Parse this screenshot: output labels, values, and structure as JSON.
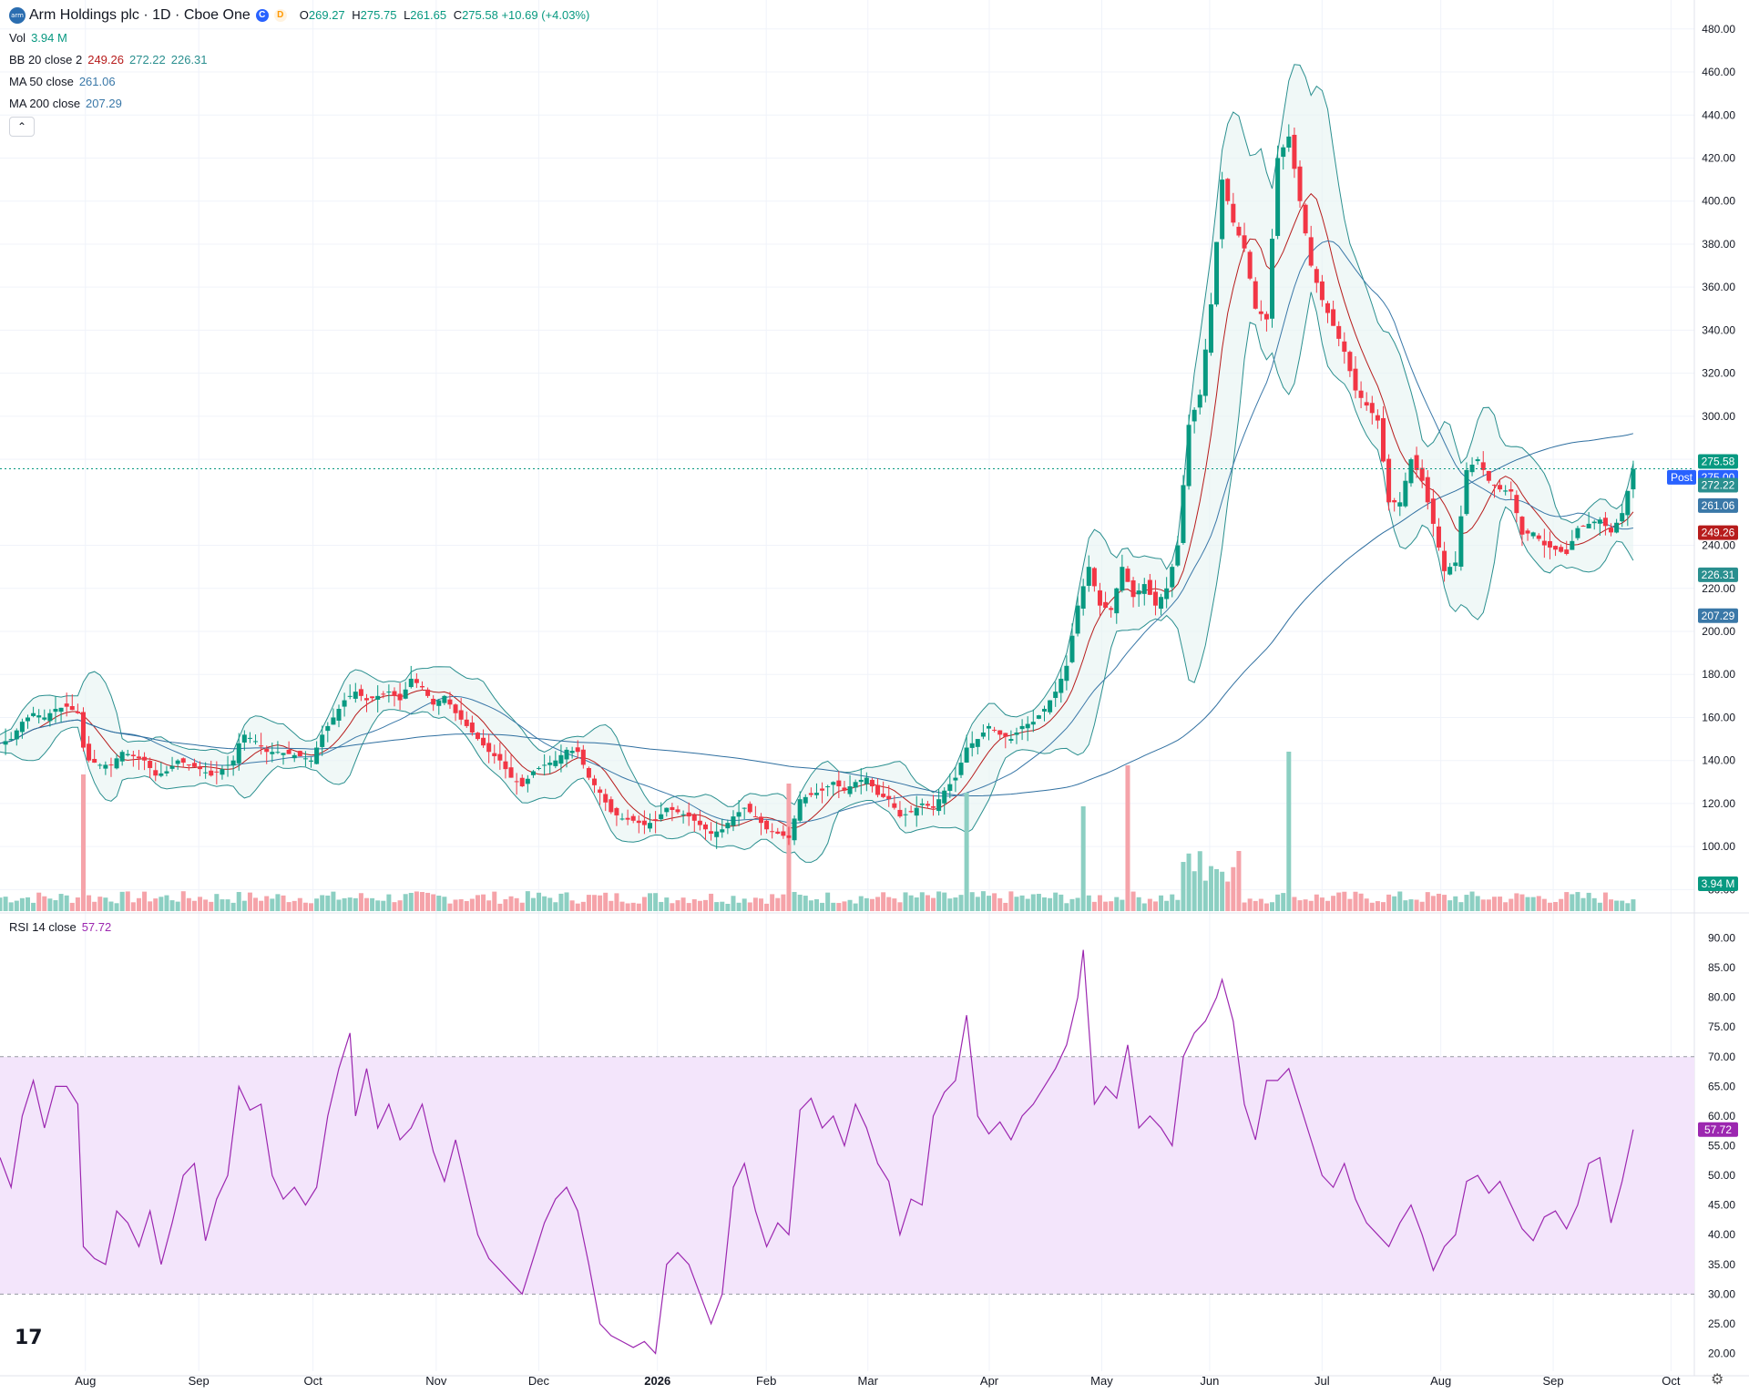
{
  "header": {
    "logo_text": "arm",
    "symbol_title": "Arm Holdings plc · 1D · Cboe One",
    "badge_c": "C",
    "badge_d": "D",
    "ohlc": {
      "o_label": "O",
      "o": "269.27",
      "h_label": "H",
      "h": "275.75",
      "l_label": "L",
      "l": "261.65",
      "c_label": "C",
      "c": "275.58",
      "change": "+10.69 (+4.03%)"
    }
  },
  "indicators": {
    "vol": {
      "label": "Vol",
      "value": "3.94 M"
    },
    "bb": {
      "label": "BB 20 close 2",
      "basis": "249.26",
      "upper": "272.22",
      "lower": "226.31"
    },
    "ma50": {
      "label": "MA 50 close",
      "value": "261.06"
    },
    "ma200": {
      "label": "MA 200 close",
      "value": "207.29"
    },
    "rsi": {
      "label": "RSI 14 close",
      "value": "57.72"
    }
  },
  "colors": {
    "up": "#089981",
    "down": "#f23645",
    "bb_band": "#2a8f8f",
    "bb_basis": "#b71c1c",
    "ma50": "#3a78a8",
    "ma200": "#2f6fa0",
    "rsi_line": "#9c27b0",
    "rsi_fill": "#f3e5fb",
    "last_price": "#089981",
    "post": "#2962ff"
  },
  "chart_data": {
    "type": "candlestick",
    "title": "Arm Holdings plc · 1D · Cboe One",
    "price_axis": {
      "ticks": [
        "480.00",
        "460.00",
        "440.00",
        "420.00",
        "400.00",
        "380.00",
        "360.00",
        "340.00",
        "320.00",
        "300.00",
        "280.00",
        "240.00",
        "220.00",
        "200.00",
        "180.00",
        "160.00",
        "140.00",
        "120.00",
        "100.00",
        "80.00"
      ],
      "ylim": [
        70,
        485
      ]
    },
    "price_labels": [
      {
        "text": "275.58",
        "value": 275.58,
        "color": "#089981"
      },
      {
        "text": "275.00",
        "value": 275.0,
        "color": "#2962ff",
        "tag": "Post"
      },
      {
        "text": "272.22",
        "value": 272.22,
        "color": "#2a8f8f"
      },
      {
        "text": "261.06",
        "value": 261.06,
        "color": "#3a78a8"
      },
      {
        "text": "249.26",
        "value": 249.26,
        "color": "#b71c1c"
      },
      {
        "text": "226.31",
        "value": 226.31,
        "color": "#2a8f8f"
      },
      {
        "text": "207.29",
        "value": 207.29,
        "color": "#3a78a8"
      }
    ],
    "volume_label": "3.94 M",
    "time_axis": [
      "Aug",
      "Sep",
      "Oct",
      "Nov",
      "Dec",
      "2026",
      "Feb",
      "Mar",
      "Apr",
      "May",
      "Jun",
      "Jul",
      "Aug",
      "Sep",
      "Oct"
    ],
    "series": [
      {
        "name": "Close (approx.)",
        "values": [
          [
            0,
            148
          ],
          [
            10,
            150
          ],
          [
            20,
            158
          ],
          [
            30,
            162
          ],
          [
            40,
            160
          ],
          [
            50,
            164
          ],
          [
            60,
            165
          ],
          [
            70,
            162
          ],
          [
            75,
            146
          ],
          [
            80,
            140
          ],
          [
            90,
            138
          ],
          [
            100,
            138
          ],
          [
            110,
            144
          ],
          [
            120,
            142
          ],
          [
            130,
            140
          ],
          [
            140,
            133
          ],
          [
            150,
            135
          ],
          [
            160,
            140
          ],
          [
            170,
            138
          ],
          [
            180,
            136
          ],
          [
            190,
            133
          ],
          [
            200,
            136
          ],
          [
            210,
            140
          ],
          [
            215,
            148
          ],
          [
            220,
            152
          ],
          [
            230,
            149
          ],
          [
            240,
            144
          ],
          [
            250,
            144
          ],
          [
            260,
            143
          ],
          [
            270,
            142
          ],
          [
            280,
            140
          ],
          [
            290,
            152
          ],
          [
            300,
            160
          ],
          [
            310,
            168
          ],
          [
            320,
            172
          ],
          [
            330,
            168
          ],
          [
            340,
            170
          ],
          [
            350,
            172
          ],
          [
            360,
            168
          ],
          [
            370,
            178
          ],
          [
            380,
            174
          ],
          [
            390,
            166
          ],
          [
            400,
            170
          ],
          [
            410,
            162
          ],
          [
            420,
            156
          ],
          [
            430,
            150
          ],
          [
            440,
            144
          ],
          [
            450,
            140
          ],
          [
            460,
            132
          ],
          [
            470,
            128
          ],
          [
            480,
            135
          ],
          [
            490,
            138
          ],
          [
            500,
            140
          ],
          [
            510,
            145
          ],
          [
            520,
            144
          ],
          [
            530,
            132
          ],
          [
            540,
            125
          ],
          [
            550,
            116
          ],
          [
            560,
            113
          ],
          [
            570,
            112
          ],
          [
            580,
            110
          ],
          [
            590,
            112
          ],
          [
            600,
            118
          ],
          [
            610,
            116
          ],
          [
            620,
            114
          ],
          [
            630,
            110
          ],
          [
            640,
            106
          ],
          [
            650,
            108
          ],
          [
            660,
            114
          ],
          [
            670,
            118
          ],
          [
            680,
            114
          ],
          [
            690,
            108
          ],
          [
            700,
            106
          ],
          [
            710,
            104
          ],
          [
            720,
            122
          ],
          [
            730,
            124
          ],
          [
            740,
            126
          ],
          [
            750,
            130
          ],
          [
            760,
            126
          ],
          [
            770,
            130
          ],
          [
            780,
            132
          ],
          [
            790,
            124
          ],
          [
            800,
            122
          ],
          [
            810,
            114
          ],
          [
            820,
            116
          ],
          [
            830,
            120
          ],
          [
            840,
            118
          ],
          [
            850,
            126
          ],
          [
            860,
            132
          ],
          [
            870,
            146
          ],
          [
            880,
            150
          ],
          [
            890,
            156
          ],
          [
            900,
            152
          ],
          [
            910,
            150
          ],
          [
            920,
            156
          ],
          [
            930,
            158
          ],
          [
            940,
            164
          ],
          [
            950,
            172
          ],
          [
            960,
            184
          ],
          [
            970,
            212
          ],
          [
            980,
            230
          ],
          [
            990,
            212
          ],
          [
            1000,
            210
          ],
          [
            1010,
            230
          ],
          [
            1020,
            216
          ],
          [
            1030,
            222
          ],
          [
            1040,
            212
          ],
          [
            1050,
            220
          ],
          [
            1060,
            240
          ],
          [
            1070,
            296
          ],
          [
            1080,
            310
          ],
          [
            1090,
            352
          ],
          [
            1100,
            410
          ],
          [
            1110,
            390
          ],
          [
            1120,
            378
          ],
          [
            1130,
            350
          ],
          [
            1140,
            345
          ],
          [
            1150,
            420
          ],
          [
            1160,
            430
          ],
          [
            1170,
            400
          ],
          [
            1180,
            370
          ],
          [
            1190,
            354
          ],
          [
            1200,
            342
          ],
          [
            1210,
            330
          ],
          [
            1220,
            312
          ],
          [
            1230,
            305
          ],
          [
            1240,
            298
          ],
          [
            1250,
            260
          ],
          [
            1260,
            260
          ],
          [
            1270,
            280
          ],
          [
            1280,
            270
          ],
          [
            1290,
            250
          ],
          [
            1300,
            228
          ],
          [
            1310,
            232
          ],
          [
            1320,
            275
          ],
          [
            1330,
            280
          ],
          [
            1340,
            270
          ],
          [
            1350,
            266
          ],
          [
            1360,
            265
          ],
          [
            1370,
            245
          ],
          [
            1380,
            246
          ],
          [
            1390,
            240
          ],
          [
            1400,
            238
          ],
          [
            1410,
            236
          ],
          [
            1420,
            248
          ],
          [
            1430,
            250
          ],
          [
            1440,
            252
          ],
          [
            1450,
            246
          ],
          [
            1460,
            255
          ],
          [
            1470,
            275.58
          ]
        ]
      }
    ],
    "rsi": {
      "ticks": [
        "90.00",
        "85.00",
        "80.00",
        "75.00",
        "70.00",
        "65.00",
        "60.00",
        "55.00",
        "50.00",
        "45.00",
        "40.00",
        "35.00",
        "30.00",
        "25.00",
        "20.00"
      ],
      "ylim": [
        17,
        93
      ],
      "band": [
        30,
        70
      ],
      "values": [
        [
          0,
          53
        ],
        [
          10,
          48
        ],
        [
          20,
          60
        ],
        [
          30,
          66
        ],
        [
          40,
          58
        ],
        [
          50,
          65
        ],
        [
          60,
          65
        ],
        [
          70,
          62
        ],
        [
          75,
          38
        ],
        [
          85,
          36
        ],
        [
          95,
          35
        ],
        [
          105,
          44
        ],
        [
          115,
          42
        ],
        [
          125,
          38
        ],
        [
          135,
          44
        ],
        [
          145,
          35
        ],
        [
          155,
          42
        ],
        [
          165,
          50
        ],
        [
          175,
          52
        ],
        [
          185,
          39
        ],
        [
          195,
          46
        ],
        [
          205,
          50
        ],
        [
          215,
          65
        ],
        [
          225,
          61
        ],
        [
          235,
          62
        ],
        [
          245,
          50
        ],
        [
          255,
          46
        ],
        [
          265,
          48
        ],
        [
          275,
          45
        ],
        [
          285,
          48
        ],
        [
          295,
          60
        ],
        [
          305,
          68
        ],
        [
          315,
          74
        ],
        [
          320,
          60
        ],
        [
          330,
          68
        ],
        [
          340,
          58
        ],
        [
          350,
          62
        ],
        [
          360,
          56
        ],
        [
          370,
          58
        ],
        [
          380,
          62
        ],
        [
          390,
          54
        ],
        [
          400,
          49
        ],
        [
          410,
          56
        ],
        [
          420,
          48
        ],
        [
          430,
          40
        ],
        [
          440,
          36
        ],
        [
          450,
          34
        ],
        [
          460,
          32
        ],
        [
          470,
          30
        ],
        [
          480,
          36
        ],
        [
          490,
          42
        ],
        [
          500,
          46
        ],
        [
          510,
          48
        ],
        [
          520,
          44
        ],
        [
          530,
          35
        ],
        [
          540,
          25
        ],
        [
          550,
          23
        ],
        [
          560,
          22
        ],
        [
          570,
          21
        ],
        [
          580,
          22
        ],
        [
          590,
          20
        ],
        [
          600,
          35
        ],
        [
          610,
          37
        ],
        [
          620,
          35
        ],
        [
          630,
          30
        ],
        [
          640,
          25
        ],
        [
          650,
          30
        ],
        [
          660,
          48
        ],
        [
          670,
          52
        ],
        [
          680,
          44
        ],
        [
          690,
          38
        ],
        [
          700,
          42
        ],
        [
          710,
          40
        ],
        [
          720,
          61
        ],
        [
          730,
          63
        ],
        [
          740,
          58
        ],
        [
          750,
          60
        ],
        [
          760,
          55
        ],
        [
          770,
          62
        ],
        [
          780,
          58
        ],
        [
          790,
          52
        ],
        [
          800,
          49
        ],
        [
          810,
          40
        ],
        [
          820,
          46
        ],
        [
          830,
          45
        ],
        [
          840,
          60
        ],
        [
          850,
          64
        ],
        [
          860,
          66
        ],
        [
          870,
          77
        ],
        [
          880,
          60
        ],
        [
          890,
          57
        ],
        [
          900,
          59
        ],
        [
          910,
          56
        ],
        [
          920,
          60
        ],
        [
          930,
          62
        ],
        [
          940,
          65
        ],
        [
          950,
          68
        ],
        [
          960,
          72
        ],
        [
          970,
          80
        ],
        [
          975,
          88
        ],
        [
          985,
          62
        ],
        [
          995,
          65
        ],
        [
          1005,
          63
        ],
        [
          1015,
          72
        ],
        [
          1025,
          58
        ],
        [
          1035,
          60
        ],
        [
          1045,
          58
        ],
        [
          1055,
          55
        ],
        [
          1065,
          70
        ],
        [
          1075,
          74
        ],
        [
          1085,
          76
        ],
        [
          1095,
          80
        ],
        [
          1100,
          83
        ],
        [
          1110,
          76
        ],
        [
          1120,
          62
        ],
        [
          1130,
          56
        ],
        [
          1140,
          66
        ],
        [
          1150,
          66
        ],
        [
          1160,
          68
        ],
        [
          1170,
          62
        ],
        [
          1180,
          56
        ],
        [
          1190,
          50
        ],
        [
          1200,
          48
        ],
        [
          1210,
          52
        ],
        [
          1220,
          46
        ],
        [
          1230,
          42
        ],
        [
          1240,
          40
        ],
        [
          1250,
          38
        ],
        [
          1260,
          42
        ],
        [
          1270,
          45
        ],
        [
          1280,
          40
        ],
        [
          1290,
          34
        ],
        [
          1300,
          38
        ],
        [
          1310,
          40
        ],
        [
          1320,
          49
        ],
        [
          1330,
          50
        ],
        [
          1340,
          47
        ],
        [
          1350,
          49
        ],
        [
          1360,
          45
        ],
        [
          1370,
          41
        ],
        [
          1380,
          39
        ],
        [
          1390,
          43
        ],
        [
          1400,
          44
        ],
        [
          1410,
          41
        ],
        [
          1420,
          45
        ],
        [
          1430,
          52
        ],
        [
          1440,
          53
        ],
        [
          1450,
          42
        ],
        [
          1460,
          49
        ],
        [
          1470,
          57.72
        ]
      ]
    },
    "grid": true,
    "legend": "top-left"
  }
}
